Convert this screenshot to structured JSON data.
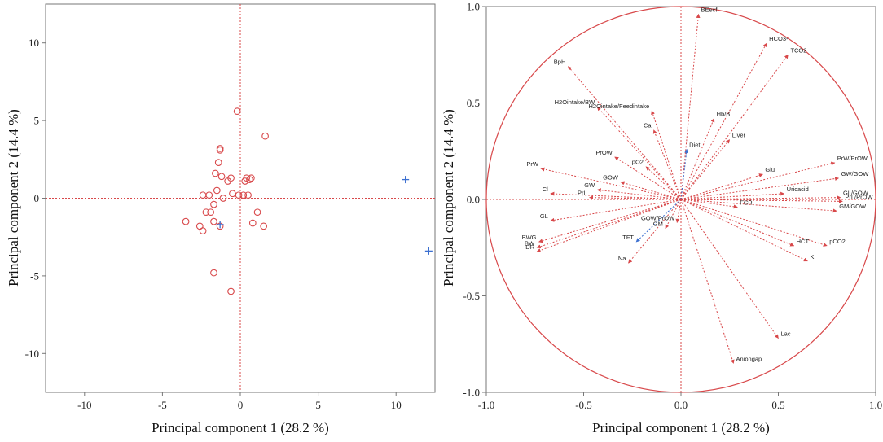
{
  "chart_data": [
    {
      "type": "scatter",
      "title": "",
      "xlabel": "Principal component 1 (28.2 %)",
      "ylabel": "Principal component 2 (14.4 %)",
      "xlim": [
        -12.5,
        12.5
      ],
      "ylim": [
        -12.5,
        12.5
      ],
      "xticks": [
        -10,
        -5,
        0,
        5,
        10
      ],
      "yticks": [
        -10,
        -5,
        0,
        5,
        10
      ],
      "xtick_labels": [
        "-10",
        "-5",
        "0",
        "5",
        "10"
      ],
      "ytick_labels": [
        "-10",
        "-5",
        "0",
        "5",
        "10"
      ],
      "series": [
        {
          "name": "observations",
          "marker": "circle",
          "color": "#d8484a",
          "points": [
            [
              -0.2,
              5.6
            ],
            [
              1.6,
              4.0
            ],
            [
              -1.3,
              3.2
            ],
            [
              -1.3,
              3.1
            ],
            [
              -1.4,
              2.3
            ],
            [
              -1.6,
              1.6
            ],
            [
              -1.2,
              1.4
            ],
            [
              -0.6,
              1.3
            ],
            [
              0.4,
              1.3
            ],
            [
              0.7,
              1.3
            ],
            [
              0.6,
              1.2
            ],
            [
              0.3,
              1.1
            ],
            [
              -0.8,
              1.1
            ],
            [
              -1.5,
              0.5
            ],
            [
              -2.4,
              0.2
            ],
            [
              -2.0,
              0.2
            ],
            [
              -0.5,
              0.3
            ],
            [
              -0.1,
              0.2
            ],
            [
              0.2,
              0.2
            ],
            [
              0.5,
              0.2
            ],
            [
              -1.1,
              0.0
            ],
            [
              -1.7,
              -0.4
            ],
            [
              -1.9,
              -0.9
            ],
            [
              -2.2,
              -0.9
            ],
            [
              1.1,
              -0.9
            ],
            [
              -3.5,
              -1.5
            ],
            [
              -1.7,
              -1.5
            ],
            [
              -1.3,
              -1.8
            ],
            [
              0.8,
              -1.6
            ],
            [
              1.5,
              -1.8
            ],
            [
              -2.6,
              -1.8
            ],
            [
              -2.4,
              -2.1
            ],
            [
              -1.7,
              -4.8
            ],
            [
              -0.6,
              -6.0
            ]
          ]
        },
        {
          "name": "outliers",
          "marker": "plus",
          "color": "#3b6fd0",
          "points": [
            [
              10.6,
              1.2
            ],
            [
              12.1,
              -3.4
            ],
            [
              -1.3,
              -1.7
            ]
          ]
        }
      ]
    },
    {
      "type": "biplot",
      "title": "",
      "xlabel": "Principal component 1 (28.2 %)",
      "ylabel": "Principal component 2 (14.4 %)",
      "xlim": [
        -1.0,
        1.0
      ],
      "ylim": [
        -1.0,
        1.0
      ],
      "xticks": [
        -1.0,
        -0.5,
        0.0,
        0.5,
        1.0
      ],
      "yticks": [
        1.0,
        0.5,
        0.0,
        -0.5,
        -1.0
      ],
      "xtick_labels": [
        "-1.0",
        "-0.5",
        "0.0",
        "0.5",
        "1.0"
      ],
      "ytick_labels": [
        "1.0",
        "0.5",
        "0.0",
        "-0.5",
        "-1.0"
      ],
      "circle_radius": 1.0,
      "vectors": [
        {
          "name": "BEecf",
          "x": 0.09,
          "y": 0.96
        },
        {
          "name": "HCO3-",
          "x": 0.44,
          "y": 0.81
        },
        {
          "name": "TCO2",
          "x": 0.55,
          "y": 0.75
        },
        {
          "name": "BpH",
          "x": -0.58,
          "y": 0.69
        },
        {
          "name": "H2Ointake/BW",
          "x": -0.43,
          "y": 0.48
        },
        {
          "name": "H2Ointake/Feedintake",
          "x": -0.15,
          "y": 0.46
        },
        {
          "name": "Hb/B",
          "x": 0.17,
          "y": 0.42
        },
        {
          "name": "Ca",
          "x": -0.14,
          "y": 0.36
        },
        {
          "name": "Liver",
          "x": 0.25,
          "y": 0.31
        },
        {
          "name": "Diet",
          "x": 0.03,
          "y": 0.26,
          "color": "#3b6fd0"
        },
        {
          "name": "PrOW",
          "x": -0.34,
          "y": 0.22
        },
        {
          "name": "pO2",
          "x": -0.18,
          "y": 0.17
        },
        {
          "name": "PrW",
          "x": -0.72,
          "y": 0.16
        },
        {
          "name": "GOW",
          "x": -0.31,
          "y": 0.09
        },
        {
          "name": "GW",
          "x": -0.43,
          "y": 0.05
        },
        {
          "name": "Cl",
          "x": -0.67,
          "y": 0.03
        },
        {
          "name": "PrL",
          "x": -0.47,
          "y": 0.01
        },
        {
          "name": "Glu",
          "x": 0.42,
          "y": 0.13
        },
        {
          "name": "PrW/PrOW",
          "x": 0.79,
          "y": 0.19
        },
        {
          "name": "GW/GOW",
          "x": 0.81,
          "y": 0.11
        },
        {
          "name": "Uricacid",
          "x": 0.53,
          "y": 0.03
        },
        {
          "name": "GL/GOW",
          "x": 0.82,
          "y": 0.01
        },
        {
          "name": "PrL/PrOW",
          "x": 0.83,
          "y": -0.01
        },
        {
          "name": "GM/GOW",
          "x": 0.8,
          "y": -0.06
        },
        {
          "name": "FCR",
          "x": 0.29,
          "y": -0.04
        },
        {
          "name": "GL",
          "x": -0.67,
          "y": -0.11
        },
        {
          "name": "BWG",
          "x": -0.73,
          "y": -0.22
        },
        {
          "name": "BW",
          "x": -0.74,
          "y": -0.25
        },
        {
          "name": "DR",
          "x": -0.74,
          "y": -0.27
        },
        {
          "name": "GOW/PrOW",
          "x": -0.02,
          "y": -0.12
        },
        {
          "name": "GM",
          "x": -0.08,
          "y": -0.15
        },
        {
          "name": "TFT",
          "x": -0.23,
          "y": -0.22,
          "color": "#3b6fd0"
        },
        {
          "name": "Na",
          "x": -0.27,
          "y": -0.33
        },
        {
          "name": "HCT",
          "x": 0.58,
          "y": -0.24
        },
        {
          "name": "pCO2",
          "x": 0.75,
          "y": -0.24
        },
        {
          "name": "K",
          "x": 0.65,
          "y": -0.32
        },
        {
          "name": "Lac",
          "x": 0.5,
          "y": -0.72
        },
        {
          "name": "Aniongap",
          "x": 0.27,
          "y": -0.85
        }
      ]
    }
  ],
  "colors": {
    "accent": "#d8484a",
    "secondary": "#3b6fd0",
    "frame": "#777777"
  }
}
